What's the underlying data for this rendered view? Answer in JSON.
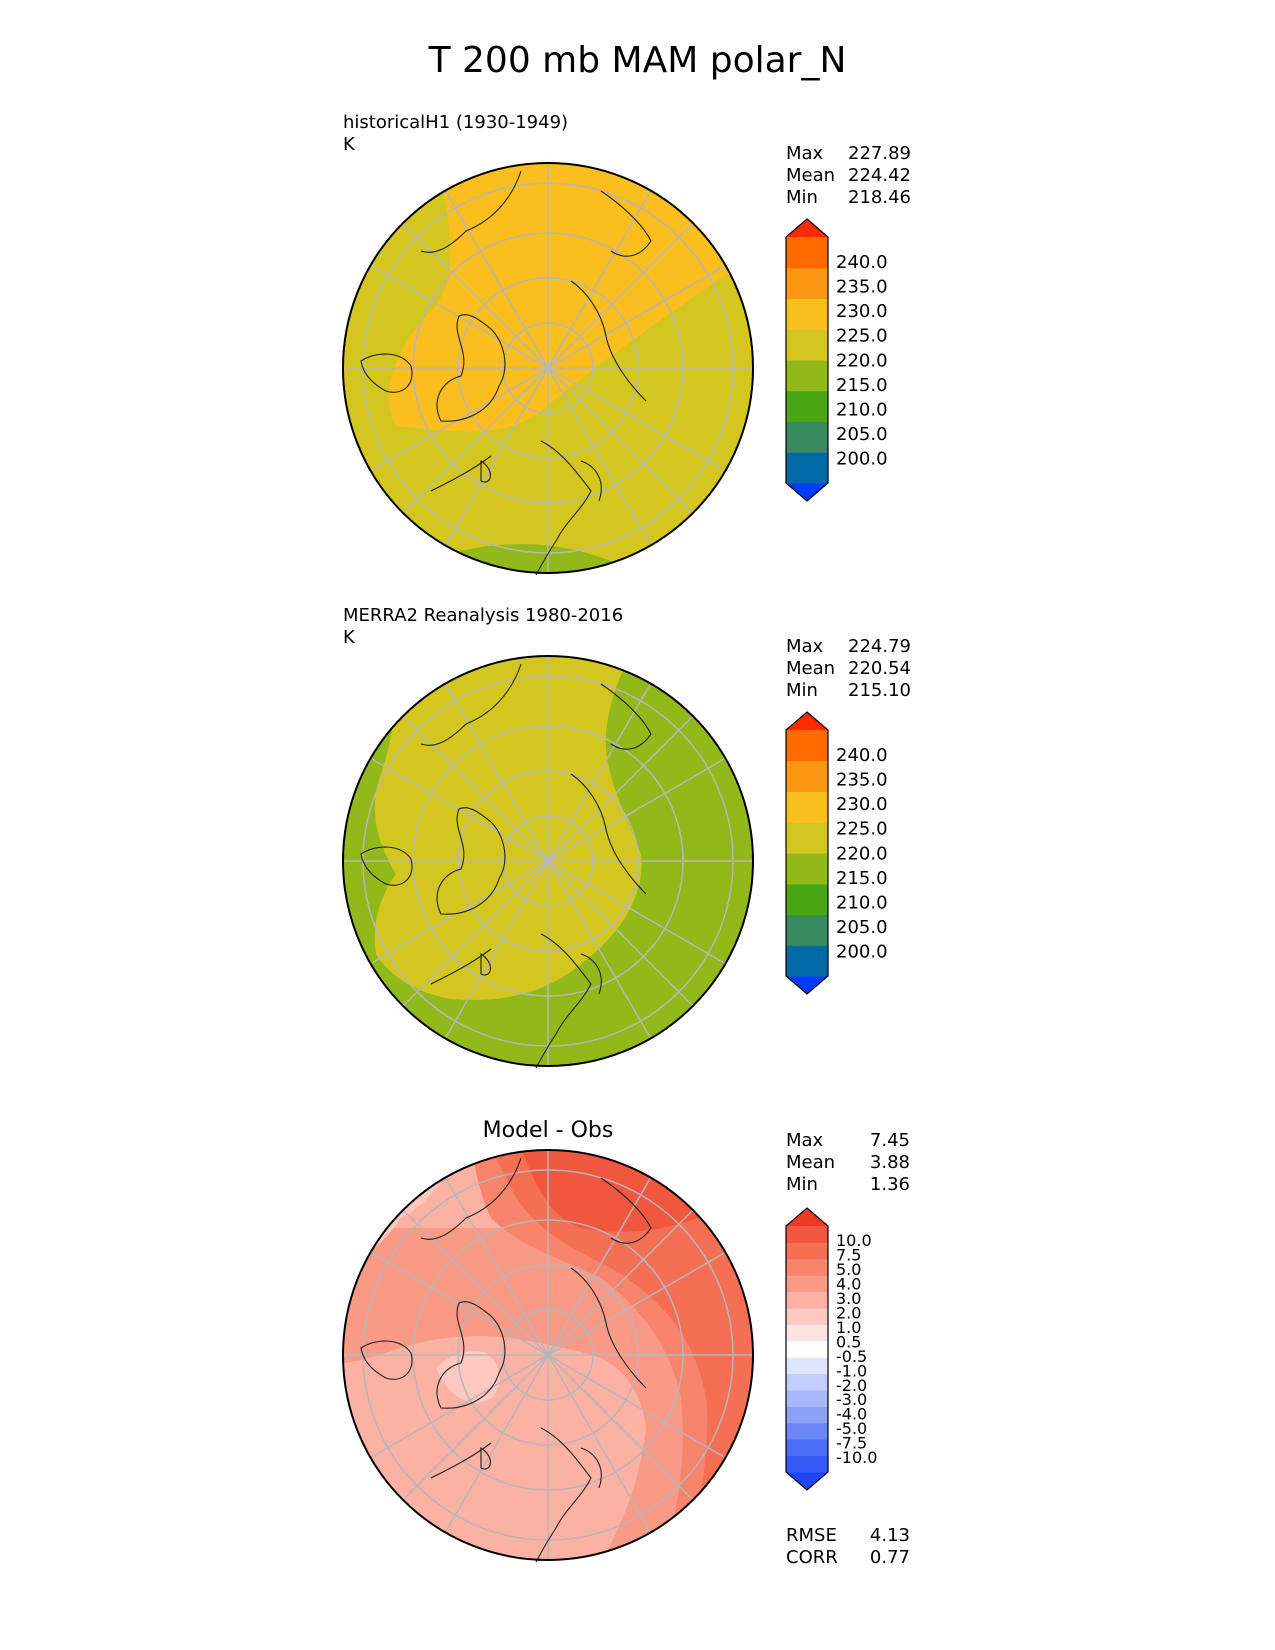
{
  "title": "T 200 mb MAM polar_N",
  "colors": {
    "abs_levels": [
      "#003cff",
      "#006aa6",
      "#3a8a5f",
      "#4ba615",
      "#91b91a",
      "#d3c61e",
      "#fbbe1f",
      "#fc9714",
      "#ff6a00",
      "#ff2a00"
    ],
    "diff_levels": [
      "#1f45f5",
      "#3559f7",
      "#4c6df8",
      "#6a86f8",
      "#8ba1f8",
      "#a8b8f9",
      "#c3cdfb",
      "#dfe5fd",
      "#ffffff",
      "#fde3e0",
      "#fcc8c0",
      "#fbb2a4",
      "#f99a86",
      "#f8846c",
      "#f56f55",
      "#f1573f",
      "#ee3a22"
    ]
  },
  "panels": [
    {
      "id": "model",
      "title": "historicalH1 (1930-1949)",
      "units": "K",
      "stats": {
        "max_label": "Max",
        "max": "227.89",
        "mean_label": "Mean",
        "mean": "224.42",
        "min_label": "Min",
        "min": "218.46"
      }
    },
    {
      "id": "obs",
      "title": "MERRA2 Reanalysis 1980-2016",
      "units": "K",
      "stats": {
        "max_label": "Max",
        "max": "224.79",
        "mean_label": "Mean",
        "mean": "220.54",
        "min_label": "Min",
        "min": "215.10"
      }
    },
    {
      "id": "diff",
      "title": "Model - Obs",
      "stats": {
        "max_label": "Max",
        "max": "7.45",
        "mean_label": "Mean",
        "mean": "3.88",
        "min_label": "Min",
        "min": "1.36"
      },
      "rmse_label": "RMSE",
      "rmse": "4.13",
      "corr_label": "CORR",
      "corr": "0.77"
    }
  ],
  "abs_colorbar_labels": [
    "240.0",
    "235.0",
    "230.0",
    "225.0",
    "220.0",
    "215.0",
    "210.0",
    "205.0",
    "200.0"
  ],
  "diff_colorbar_labels": [
    "10.0",
    "7.5",
    "5.0",
    "4.0",
    "3.0",
    "2.0",
    "1.0",
    "0.5",
    "-0.5",
    "-1.0",
    "-2.0",
    "-3.0",
    "-4.0",
    "-5.0",
    "-7.5",
    "-10.0"
  ]
}
